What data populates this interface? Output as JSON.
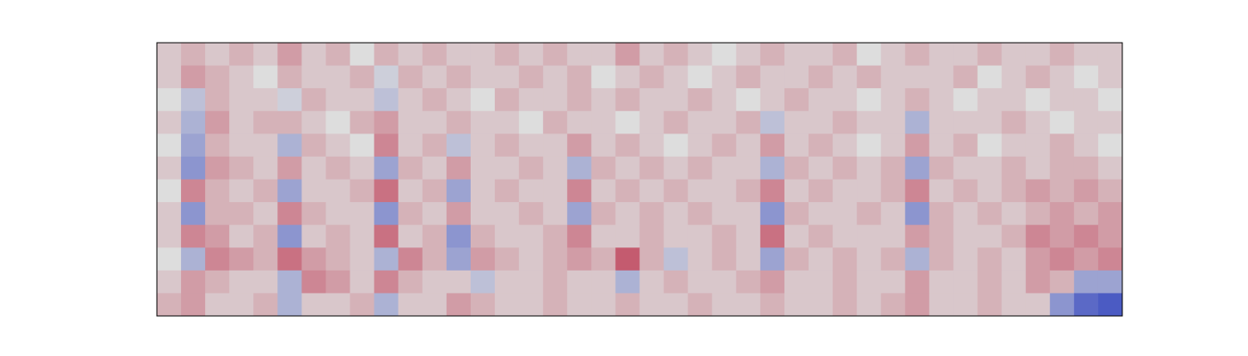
{
  "chart_data": {
    "type": "heatmap",
    "colormap": "coolwarm",
    "zlim": [
      -1,
      1
    ],
    "values": [
      [
        0.1,
        0.2,
        0.1,
        0.2,
        0.1,
        0.3,
        0.1,
        0.2,
        0,
        0.2,
        0.1,
        0.2,
        0.1,
        0.1,
        0.2,
        0.1,
        0.2,
        0.1,
        0.1,
        0.3,
        0.1,
        0.2,
        0.1,
        0,
        0.1,
        0.2,
        0.1,
        0.1,
        0.2,
        0,
        0.1,
        0.2,
        0.1,
        0.1,
        0.2,
        0.1,
        0.1,
        0.2,
        0.1,
        0.1
      ],
      [
        0.1,
        0.3,
        0.2,
        0.1,
        0,
        0.2,
        0.1,
        0.1,
        0.2,
        -0.1,
        0.2,
        0.1,
        0.2,
        0.1,
        0.1,
        0.2,
        0.1,
        0.2,
        0,
        0.1,
        0.2,
        0.1,
        0,
        0.1,
        0.2,
        0.1,
        0.1,
        0.2,
        0.1,
        0.2,
        0.1,
        0.1,
        0.1,
        0.2,
        0,
        0.1,
        0.2,
        0.1,
        0,
        0.1
      ],
      [
        0,
        -0.2,
        0.2,
        0.1,
        0.1,
        -0.1,
        0.2,
        0.1,
        0.1,
        -0.2,
        0.1,
        0.2,
        0.1,
        0,
        0.2,
        0.1,
        0.1,
        0.2,
        0.1,
        0.2,
        0.1,
        0.1,
        0.2,
        0.1,
        0,
        0.1,
        0.2,
        0.1,
        0.1,
        0,
        0.1,
        0.2,
        0.1,
        0,
        0.1,
        0.1,
        0,
        0.1,
        0.1,
        0
      ],
      [
        0.1,
        -0.3,
        0.3,
        0.1,
        0.2,
        0.2,
        0.1,
        0,
        0.2,
        0.3,
        0.1,
        0.1,
        0.2,
        0.1,
        0.1,
        0,
        0.2,
        0.1,
        0.1,
        0,
        0.1,
        0.2,
        0.1,
        0.1,
        0.2,
        -0.2,
        0.1,
        0.1,
        0.2,
        0.1,
        0.1,
        -0.3,
        0.1,
        0.1,
        0.1,
        0.2,
        0.1,
        0,
        0.1,
        0.1
      ],
      [
        0,
        -0.4,
        0.2,
        0.1,
        0.1,
        -0.3,
        0.2,
        0.1,
        0,
        0.4,
        0.1,
        0.2,
        -0.2,
        0.1,
        0.2,
        0.1,
        0.1,
        0.3,
        0.1,
        0.2,
        0.1,
        0,
        0.1,
        0.2,
        0.1,
        0.3,
        0.1,
        0.2,
        0.1,
        0,
        0.1,
        0.3,
        0.1,
        0.2,
        0,
        0.1,
        0.1,
        0.2,
        0.1,
        0
      ],
      [
        0.1,
        -0.5,
        0.3,
        0.2,
        0.1,
        0.3,
        0.1,
        0.2,
        0.1,
        -0.4,
        0.2,
        0.1,
        0.3,
        0.1,
        0.1,
        0.2,
        0.1,
        -0.3,
        0.2,
        0.1,
        0.2,
        0.1,
        0.2,
        0.1,
        0.1,
        -0.3,
        0.2,
        0.1,
        0.2,
        0.1,
        0.2,
        -0.4,
        0.2,
        0.1,
        0.1,
        0.2,
        0.1,
        0.2,
        0.2,
        0.1
      ],
      [
        0,
        0.4,
        0.2,
        0.1,
        0.2,
        -0.4,
        0.1,
        0.1,
        0.2,
        0.5,
        0.1,
        0.2,
        -0.4,
        0.1,
        0.2,
        0.1,
        0.1,
        0.4,
        0.1,
        0.2,
        0.1,
        0.2,
        0.1,
        0.1,
        0.2,
        0.4,
        0.1,
        0.2,
        0.1,
        0.1,
        0.2,
        0.4,
        0.1,
        0.2,
        0.1,
        0.2,
        0.3,
        0.2,
        0.3,
        0.2
      ],
      [
        0.1,
        -0.5,
        0.2,
        0.2,
        0.1,
        0.4,
        0.2,
        0.1,
        0.1,
        -0.5,
        0.2,
        0.1,
        0.3,
        0.1,
        0.1,
        0.2,
        0.1,
        -0.4,
        0.2,
        0.1,
        0.2,
        0.1,
        0.2,
        0.1,
        0.1,
        -0.5,
        0.2,
        0.1,
        0.1,
        0.2,
        0.1,
        -0.5,
        0.2,
        0.1,
        0.2,
        0.1,
        0.2,
        0.3,
        0.2,
        0.3
      ],
      [
        0.1,
        0.4,
        0.3,
        0.1,
        0.2,
        -0.5,
        0.1,
        0.2,
        0.1,
        0.5,
        0.1,
        0.2,
        -0.5,
        0.2,
        0.1,
        0.1,
        0.2,
        0.4,
        0.1,
        0.1,
        0.2,
        0.1,
        0.1,
        0.2,
        0.1,
        0.5,
        0.1,
        0.2,
        0.1,
        0.1,
        0.1,
        0.3,
        0.2,
        0.1,
        0.1,
        0.2,
        0.4,
        0.3,
        0.4,
        0.3
      ],
      [
        0,
        -0.3,
        0.4,
        0.3,
        0.2,
        0.5,
        0.3,
        0.2,
        0.1,
        -0.3,
        0.4,
        0.2,
        -0.4,
        0.3,
        0.2,
        0.1,
        0.2,
        0.3,
        0.2,
        0.6,
        0.2,
        -0.2,
        0.1,
        0.2,
        0.1,
        -0.4,
        0.2,
        0.1,
        0.2,
        0.1,
        0.2,
        -0.3,
        0.2,
        0.1,
        0.2,
        0.1,
        0.3,
        0.4,
        0.3,
        0.4
      ],
      [
        0.1,
        0.3,
        0.2,
        0.1,
        0.1,
        -0.3,
        0.4,
        0.3,
        0.1,
        0.4,
        0.2,
        0.1,
        0.1,
        -0.2,
        0.1,
        0.1,
        0.2,
        0.1,
        0.1,
        -0.3,
        0.1,
        0.2,
        0.1,
        0.1,
        0.2,
        0.3,
        0.1,
        0.1,
        0.2,
        0.1,
        0.1,
        0.3,
        0.1,
        0.1,
        0.2,
        0.1,
        0.3,
        0.2,
        -0.4,
        -0.4
      ],
      [
        0.2,
        0.3,
        0.1,
        0.1,
        0.2,
        -0.3,
        0.1,
        0.1,
        0.2,
        -0.3,
        0.1,
        0.1,
        0.3,
        0.2,
        0.1,
        0.1,
        0.2,
        0.1,
        0.1,
        0.2,
        0.1,
        0.1,
        0.2,
        0.1,
        0.1,
        0.2,
        0.1,
        0.1,
        0.2,
        0.1,
        0.2,
        0.3,
        0.1,
        0.1,
        0.2,
        0.1,
        0.1,
        -0.5,
        -0.8,
        -0.9
      ]
    ]
  }
}
